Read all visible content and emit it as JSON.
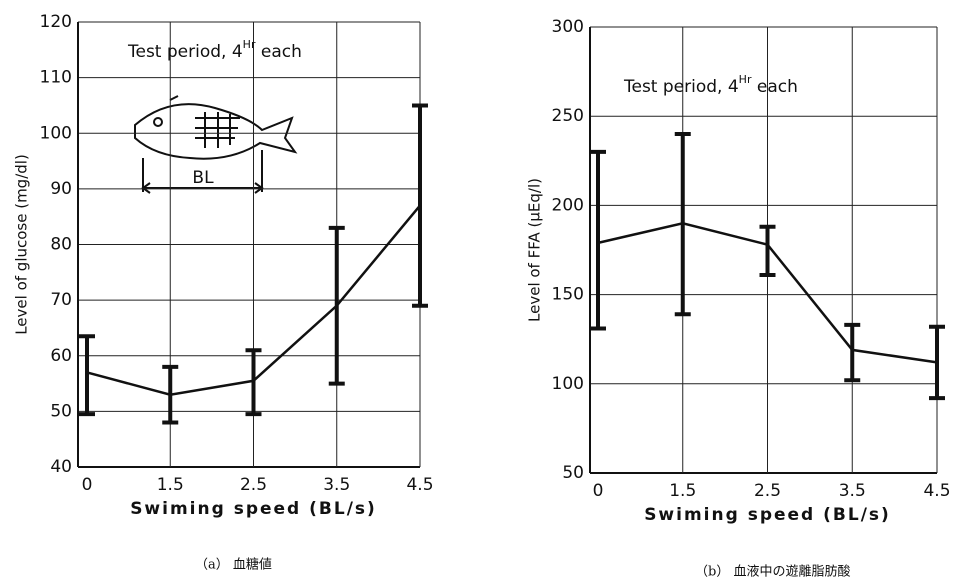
{
  "chart_data": [
    {
      "type": "line",
      "caption": "（a） 血糖値",
      "annotation": "Test period, 4",
      "annotation_sup": "Hr",
      "annotation_end": " each",
      "diagram_label": "BL",
      "x_label": "Swiming speed (BL/s)",
      "y_label": "Level of glucose (mg/dl)",
      "categories": [
        "0",
        "1.5",
        "2.5",
        "3.5",
        "4.5"
      ],
      "values": [
        57,
        53,
        55.5,
        69,
        87
      ],
      "error_low": [
        49.5,
        48,
        49.5,
        55,
        69
      ],
      "error_high": [
        63.5,
        58,
        61,
        83,
        105
      ],
      "color": "#111111",
      "ylim": [
        40,
        120
      ],
      "yticks": [
        40,
        50,
        60,
        70,
        80,
        90,
        100,
        110,
        120
      ],
      "grid": true
    },
    {
      "type": "line",
      "caption": "（b） 血液中の遊離脂肪酸",
      "annotation": "Test period, 4",
      "annotation_sup": "Hr",
      "annotation_end": " each",
      "x_label": "Swiming speed (BL/s)",
      "y_label": "Level of FFA (μEq/l)",
      "categories": [
        "0",
        "1.5",
        "2.5",
        "3.5",
        "4.5"
      ],
      "values": [
        179,
        190,
        178,
        119,
        112
      ],
      "error_low": [
        131,
        139,
        161,
        102,
        92
      ],
      "error_high": [
        230,
        240,
        188,
        133,
        132
      ],
      "color": "#111111",
      "ylim": [
        50,
        300
      ],
      "yticks": [
        50,
        100,
        150,
        200,
        250,
        300
      ],
      "grid": true
    }
  ]
}
